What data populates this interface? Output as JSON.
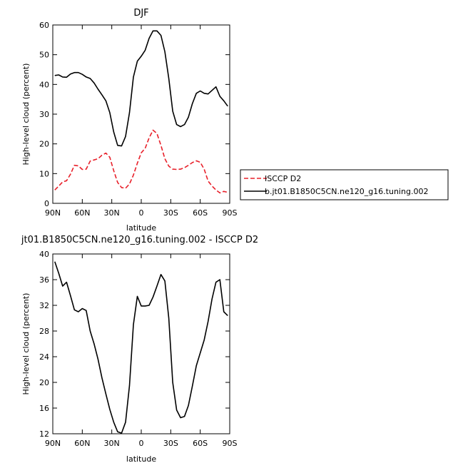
{
  "chart_data": [
    {
      "type": "line",
      "title": "DJF",
      "xlabel": "latitude",
      "ylabel": "High-level cloud (percent)",
      "xlim": [
        90,
        -90
      ],
      "ylim": [
        0,
        60
      ],
      "xticks": [
        90,
        60,
        30,
        0,
        -30,
        -60,
        -90
      ],
      "xticklabels": [
        "90N",
        "60N",
        "30N",
        "0",
        "30S",
        "60S",
        "90S"
      ],
      "yticks": [
        0,
        10,
        20,
        30,
        40,
        50,
        60
      ],
      "yticklabels": [
        "0",
        "10",
        "20",
        "30",
        "40",
        "50",
        "60"
      ],
      "legend_position": "right, outside plot",
      "series": [
        {
          "name": "ISCCP D2",
          "color": "#e8202a",
          "dash": true,
          "x": [
            88,
            84,
            80,
            76,
            72,
            68,
            64,
            60,
            56,
            52,
            48,
            44,
            40,
            36,
            32,
            28,
            24,
            20,
            16,
            12,
            8,
            4,
            0,
            -4,
            -8,
            -12,
            -16,
            -20,
            -24,
            -28,
            -32,
            -36,
            -40,
            -44,
            -48,
            -52,
            -56,
            -60,
            -64,
            -68,
            -72,
            -76,
            -80,
            -84,
            -88
          ],
          "y": [
            4.5,
            5.8,
            7.2,
            7.6,
            9.8,
            12.8,
            12.6,
            11.4,
            11.5,
            14.2,
            14.6,
            15.0,
            16.2,
            16.9,
            15.5,
            11.0,
            7.0,
            5.3,
            5.1,
            6.5,
            9.5,
            13.5,
            17.0,
            18.5,
            22.0,
            24.6,
            23.5,
            19.5,
            15.0,
            12.5,
            11.5,
            11.4,
            11.5,
            12.0,
            12.8,
            13.7,
            14.3,
            13.8,
            11.5,
            7.5,
            5.8,
            4.5,
            3.5,
            4.0,
            3.7
          ]
        },
        {
          "name": "b.jt01.B1850C5CN.ne120_g16.tuning.002",
          "color": "#000000",
          "dash": false,
          "x": [
            88,
            84,
            80,
            76,
            72,
            68,
            64,
            60,
            56,
            52,
            48,
            44,
            40,
            36,
            32,
            28,
            24,
            20,
            16,
            12,
            8,
            4,
            0,
            -4,
            -8,
            -12,
            -16,
            -20,
            -24,
            -28,
            -32,
            -36,
            -40,
            -44,
            -48,
            -52,
            -56,
            -60,
            -64,
            -68,
            -72,
            -76,
            -80,
            -84,
            -88
          ],
          "y": [
            43.0,
            43.2,
            42.5,
            42.4,
            43.5,
            44.0,
            44.0,
            43.4,
            42.5,
            42.0,
            40.5,
            38.4,
            36.5,
            34.5,
            30.5,
            24.0,
            19.5,
            19.3,
            22.5,
            30.5,
            42.5,
            47.8,
            49.5,
            51.5,
            55.5,
            58.0,
            58.0,
            56.5,
            51.0,
            42.0,
            31.0,
            26.5,
            25.8,
            26.5,
            29.0,
            33.5,
            37.0,
            37.8,
            37.0,
            36.8,
            38.0,
            39.2,
            36.0,
            34.5,
            32.7
          ]
        }
      ]
    },
    {
      "type": "line",
      "title": "jt01.B1850C5CN.ne120_g16.tuning.002 - ISCCP D2",
      "xlabel": "latitude",
      "ylabel": "High-level cloud (percent)",
      "xlim": [
        90,
        -90
      ],
      "ylim": [
        12,
        40
      ],
      "xticks": [
        90,
        60,
        30,
        0,
        -30,
        -60,
        -90
      ],
      "xticklabels": [
        "90N",
        "60N",
        "30N",
        "0",
        "30S",
        "60S",
        "90S"
      ],
      "yticks": [
        12,
        16,
        20,
        24,
        28,
        32,
        36,
        40
      ],
      "yticklabels": [
        "12",
        "16",
        "20",
        "24",
        "28",
        "32",
        "36",
        "40"
      ],
      "series": [
        {
          "color": "#000000",
          "x": [
            88,
            84,
            80,
            76,
            72,
            68,
            64,
            60,
            56,
            52,
            48,
            44,
            40,
            36,
            32,
            28,
            24,
            20,
            16,
            12,
            8,
            4,
            0,
            -4,
            -8,
            -12,
            -16,
            -20,
            -24,
            -28,
            -32,
            -36,
            -40,
            -44,
            -48,
            -52,
            -56,
            -60,
            -64,
            -68,
            -72,
            -76,
            -80,
            -84,
            -88
          ],
          "y": [
            38.8,
            37.0,
            35.0,
            35.6,
            33.5,
            31.3,
            31.0,
            31.5,
            31.2,
            28.0,
            26.0,
            23.6,
            20.7,
            18.2,
            15.8,
            13.8,
            12.3,
            12.1,
            13.8,
            19.5,
            29.0,
            33.4,
            31.9,
            31.9,
            32.0,
            33.3,
            35.0,
            36.8,
            35.8,
            30.0,
            20.0,
            15.7,
            14.5,
            14.7,
            16.4,
            19.4,
            22.6,
            24.6,
            26.6,
            29.5,
            33.0,
            35.6,
            36.0,
            31.0,
            30.4
          ]
        }
      ]
    }
  ]
}
